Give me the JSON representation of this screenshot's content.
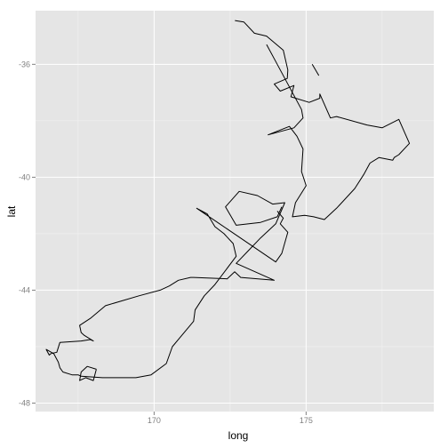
{
  "chart_data": {
    "type": "line",
    "xlabel": "long",
    "ylabel": "lat",
    "xlim": [
      166.1,
      179.2
    ],
    "ylim": [
      -48.3,
      -34.1
    ],
    "x_ticks": [
      170,
      175
    ],
    "x_tick_labels": [
      "170",
      "175"
    ],
    "y_ticks": [
      -48,
      -44,
      -40,
      -36
    ],
    "y_tick_labels": [
      "-48",
      "-44",
      "-40",
      "-36"
    ],
    "grid": true,
    "colors": {
      "panel": "#e5e5e5",
      "grid_major": "#ffffff",
      "grid_minor": "#f2f2f2",
      "line": "#000000",
      "tick_text": "#808080"
    },
    "series": [
      {
        "x": [
          172.66,
          172.95,
          173.3,
          173.7,
          174.25,
          174.4,
          174.38,
          173.95,
          174.15,
          174.6,
          174.5,
          175.1,
          175.45,
          175.45,
          175.8,
          176.0,
          177.0,
          177.5,
          178.05,
          178.4,
          178.05,
          177.9,
          177.85,
          177.4,
          177.1,
          176.9,
          176.6,
          176.0,
          175.6,
          175.25,
          174.95,
          174.55,
          174.65,
          175.0,
          174.85,
          174.9,
          174.7,
          174.45,
          173.75,
          174.6,
          174.9,
          174.85,
          174.0,
          173.7
        ],
        "y": [
          -34.45,
          -34.5,
          -34.9,
          -35.0,
          -35.5,
          -36.2,
          -36.5,
          -36.7,
          -36.95,
          -36.75,
          -37.15,
          -37.35,
          -37.2,
          -37.05,
          -37.9,
          -37.85,
          -38.15,
          -38.25,
          -37.95,
          -38.8,
          -39.2,
          -39.3,
          -39.4,
          -39.3,
          -39.5,
          -39.9,
          -40.4,
          -41.1,
          -41.5,
          -41.4,
          -41.35,
          -41.4,
          -40.9,
          -40.3,
          -39.8,
          -39.0,
          -38.55,
          -38.2,
          -38.5,
          -38.25,
          -37.9,
          -37.6,
          -35.9,
          -35.3
        ]
      },
      {
        "x": [
          175.2,
          175.42
        ],
        "y": [
          -36.0,
          -36.4
        ]
      },
      {
        "x": [
          174.2,
          174.05,
          173.5,
          172.7,
          172.35,
          172.8,
          173.4,
          173.9,
          174.3,
          174.0,
          173.5,
          173.1,
          172.7,
          173.95,
          172.85,
          172.65,
          172.4,
          171.3,
          171.2,
          170.8,
          170.5,
          170.2,
          169.5,
          168.4,
          167.9,
          167.55,
          167.6,
          167.7,
          168.0,
          167.9,
          167.6,
          166.9,
          166.8,
          166.6,
          166.55,
          166.45,
          166.7,
          166.85,
          166.9,
          167.0,
          167.3,
          167.5,
          167.6,
          168.3,
          169.4,
          169.9,
          170.4,
          170.6,
          171.3,
          171.35,
          171.65,
          172.0,
          172.7,
          172.6,
          172.3,
          172.0,
          171.75,
          171.4,
          174.0,
          174.2,
          174.4,
          174.15,
          174.25,
          174.05
        ],
        "y": [
          -41.05,
          -41.4,
          -41.6,
          -41.7,
          -41.05,
          -40.5,
          -40.65,
          -40.95,
          -40.9,
          -41.65,
          -42.15,
          -42.6,
          -43.05,
          -43.65,
          -43.55,
          -43.35,
          -43.6,
          -43.55,
          -43.55,
          -43.65,
          -43.85,
          -44.0,
          -44.2,
          -44.55,
          -45.0,
          -45.25,
          -45.5,
          -45.6,
          -45.8,
          -45.75,
          -45.8,
          -45.85,
          -46.2,
          -46.25,
          -46.3,
          -46.1,
          -46.25,
          -46.55,
          -46.75,
          -46.9,
          -47.0,
          -47.0,
          -47.05,
          -47.1,
          -47.1,
          -47.0,
          -46.6,
          -46.0,
          -45.1,
          -44.7,
          -44.2,
          -43.8,
          -42.8,
          -42.35,
          -42.0,
          -41.75,
          -41.3,
          -41.1,
          -43.0,
          -42.7,
          -41.95,
          -41.65,
          -41.45,
          -41.2
        ]
      },
      {
        "x": [
          168.1,
          167.8,
          167.6,
          167.55,
          167.75,
          168.0,
          168.1
        ],
        "y": [
          -46.8,
          -46.7,
          -46.9,
          -47.2,
          -47.1,
          -47.2,
          -46.8
        ]
      }
    ]
  }
}
